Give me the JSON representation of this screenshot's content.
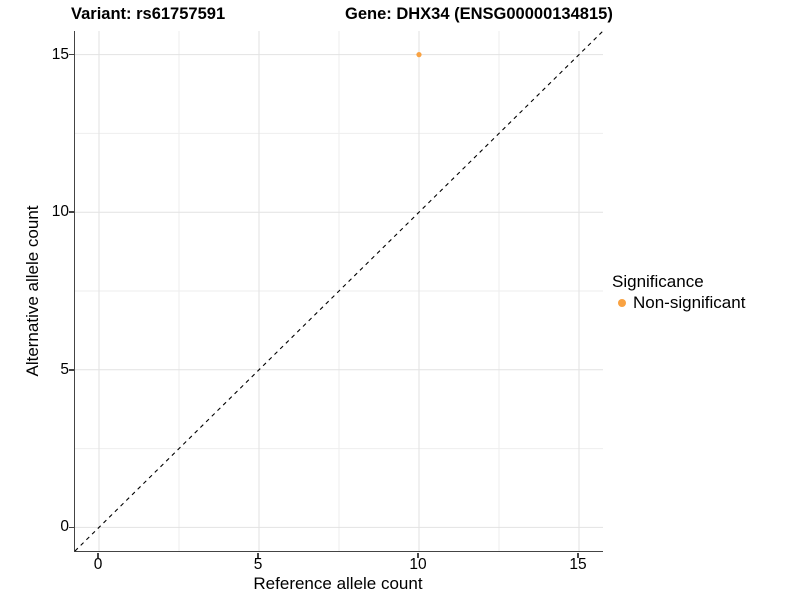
{
  "chart_data": {
    "type": "scatter",
    "title_left": "Variant: rs61757591",
    "title_right": "Gene: DHX34 (ENSG00000134815)",
    "xlabel": "Reference allele count",
    "ylabel": "Alternative allele count",
    "xlim": [
      -0.75,
      15.75
    ],
    "ylim": [
      -0.75,
      15.75
    ],
    "x_ticks": [
      0,
      5,
      10,
      15
    ],
    "y_ticks": [
      0,
      5,
      10,
      15
    ],
    "x_minor_ticks": [
      2.5,
      7.5,
      12.5
    ],
    "y_minor_ticks": [
      2.5,
      7.5,
      12.5
    ],
    "grid": true,
    "points": [
      {
        "x": 10,
        "y": 15,
        "series": "Non-significant"
      }
    ],
    "identity_line": {
      "style": "dashed",
      "from": -0.75,
      "to": 15.75
    },
    "legend": {
      "title": "Significance",
      "position": "right",
      "items": [
        {
          "label": "Non-significant",
          "color": "#F9A242"
        }
      ]
    },
    "colors": {
      "point": "#F9A242",
      "grid_major": "#E2E2E2",
      "grid_minor": "#EEEEEE",
      "axis": "#444444",
      "identity_line": "#000000",
      "text": "#000000",
      "background": "#FFFFFF"
    }
  }
}
